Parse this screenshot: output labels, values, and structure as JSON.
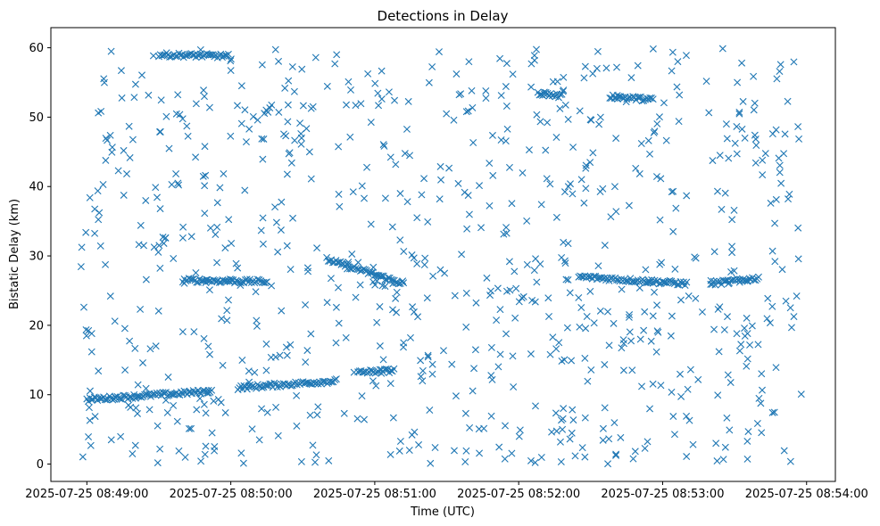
{
  "chart_data": {
    "type": "scatter",
    "title": "Detections in Delay",
    "xlabel": "Time (UTC)",
    "ylabel": "Bistatic Delay (km)",
    "marker": "x",
    "color": "#1f77b4",
    "grid": false,
    "x_axis": {
      "type": "datetime",
      "range": [
        "2025-07-25 08:48:45",
        "2025-07-25 08:54:12"
      ],
      "ticks": [
        "2025-07-25 08:49:00",
        "2025-07-25 08:50:00",
        "2025-07-25 08:51:00",
        "2025-07-25 08:52:00",
        "2025-07-25 08:53:00",
        "2025-07-25 08:54:00"
      ]
    },
    "y_axis": {
      "range": [
        -2.5,
        62.9
      ],
      "ticks": [
        0,
        10,
        20,
        30,
        40,
        50,
        60
      ]
    },
    "tracks": [
      {
        "from": [
          "2025-07-25 08:49:00",
          9.3
        ],
        "to": [
          "2025-07-25 08:49:52",
          10.5
        ]
      },
      {
        "from": [
          "2025-07-25 08:50:03",
          11.0
        ],
        "to": [
          "2025-07-25 08:50:44",
          12.0
        ]
      },
      {
        "from": [
          "2025-07-25 08:50:40",
          29.5
        ],
        "to": [
          "2025-07-25 08:51:12",
          26.0
        ]
      },
      {
        "from": [
          "2025-07-25 08:50:53",
          13.2
        ],
        "to": [
          "2025-07-25 08:51:08",
          13.5
        ]
      },
      {
        "from": [
          "2025-07-25 08:49:40",
          26.5
        ],
        "to": [
          "2025-07-25 08:50:15",
          26.3
        ]
      },
      {
        "from": [
          "2025-07-25 08:50:14",
          50.5
        ],
        "to": [
          "2025-07-25 08:50:17",
          51.5
        ]
      },
      {
        "from": [
          "2025-07-25 08:52:08",
          53.5
        ],
        "to": [
          "2025-07-25 08:52:18",
          53.0
        ]
      },
      {
        "from": [
          "2025-07-25 08:52:38",
          53.0
        ],
        "to": [
          "2025-07-25 08:52:56",
          52.5
        ]
      },
      {
        "from": [
          "2025-07-25 08:52:25",
          27.0
        ],
        "to": [
          "2025-07-25 08:53:10",
          26.0
        ]
      },
      {
        "from": [
          "2025-07-25 08:53:20",
          26.0
        ],
        "to": [
          "2025-07-25 08:53:40",
          26.8
        ]
      },
      {
        "from": [
          "2025-07-25 08:49:30",
          59.0
        ],
        "to": [
          "2025-07-25 08:49:59",
          58.8
        ]
      }
    ]
  }
}
